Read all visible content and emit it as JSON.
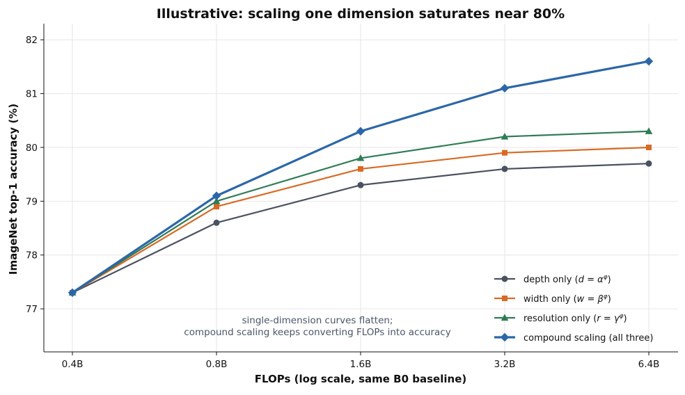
{
  "chart_data": {
    "type": "line",
    "title": "Illustrative: scaling one dimension saturates near 80%",
    "xlabel": "FLOPs (log scale, same B0 baseline)",
    "ylabel": "ImageNet top-1 accuracy (%)",
    "x_scale": "log2",
    "categories": [
      "0.4B",
      "0.8B",
      "1.6B",
      "3.2B",
      "6.4B"
    ],
    "x_values": [
      0.4,
      0.8,
      1.6,
      3.2,
      6.4
    ],
    "ylim": [
      76.2,
      82.3
    ],
    "yticks": [
      77,
      78,
      79,
      80,
      81,
      82
    ],
    "grid": true,
    "legend_position": "bottom-right",
    "series": [
      {
        "key": "depth",
        "name": "depth only (d = α^φ)",
        "legend_parts": [
          "depth only (",
          "d",
          " = ",
          "α",
          "φ",
          ")"
        ],
        "color": "#4a5160",
        "marker": "circle",
        "values": [
          77.3,
          78.6,
          79.3,
          79.6,
          79.7
        ]
      },
      {
        "key": "width",
        "name": "width only (w = β^φ)",
        "legend_parts": [
          "width only (",
          "w",
          " = ",
          "β",
          "φ",
          ")"
        ],
        "color": "#d86a24",
        "marker": "square",
        "values": [
          77.3,
          78.9,
          79.6,
          79.9,
          80.0
        ]
      },
      {
        "key": "resolution",
        "name": "resolution only (r = γ^φ)",
        "legend_parts": [
          "resolution only (",
          "r",
          " = ",
          "γ",
          "φ",
          ")"
        ],
        "color": "#2e7d55",
        "marker": "triangle",
        "values": [
          77.3,
          79.0,
          79.8,
          80.2,
          80.3
        ]
      },
      {
        "key": "compound",
        "name": "compound scaling (all three)",
        "legend_parts": [
          "compound scaling (all three)"
        ],
        "color": "#2b67a8",
        "marker": "diamond",
        "values": [
          77.3,
          79.1,
          80.3,
          81.1,
          81.6
        ]
      }
    ],
    "annotation": {
      "lines": [
        "single-dimension curves flatten;",
        "compound scaling keeps converting FLOPs into accuracy"
      ],
      "color": "#4a5568"
    }
  }
}
